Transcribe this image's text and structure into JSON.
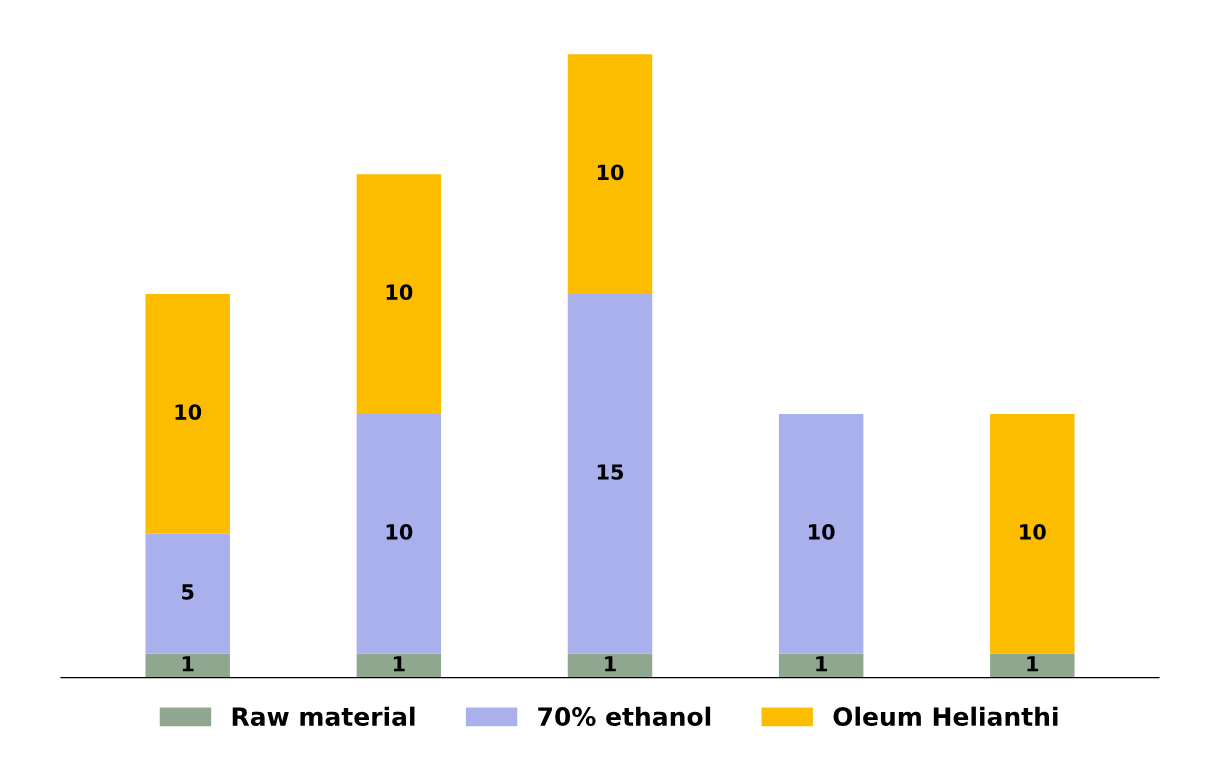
{
  "chart_data": {
    "type": "bar",
    "stacked": true,
    "categories": [
      null,
      null,
      null,
      null,
      null
    ],
    "series": [
      {
        "name": "Raw material",
        "color": "#8fa68f",
        "values": [
          1,
          1,
          1,
          1,
          1
        ]
      },
      {
        "name": "70% ethanol",
        "color": "#a9b0ec",
        "values": [
          5,
          10,
          15,
          10,
          null
        ]
      },
      {
        "name": "Oleum Helianthi",
        "color": "#fcbd00",
        "values": [
          10,
          10,
          10,
          null,
          10
        ]
      }
    ],
    "data_labels": true,
    "legend": "bottom",
    "tick_labels": false
  }
}
